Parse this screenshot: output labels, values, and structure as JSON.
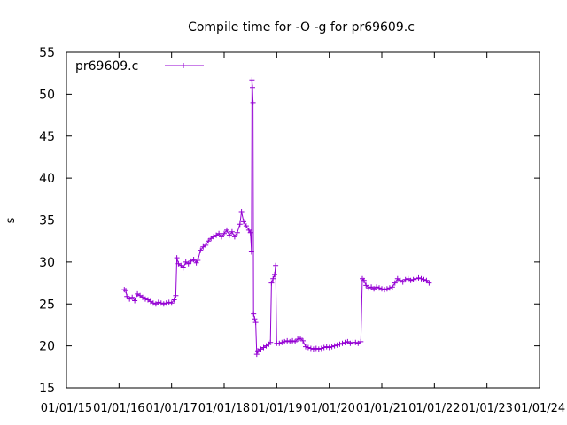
{
  "chart_data": {
    "type": "line",
    "title": "Compile time for -O -g for pr69609.c",
    "xlabel": "",
    "ylabel": "s",
    "ylim": [
      15,
      55
    ],
    "yticks": [
      15,
      20,
      25,
      30,
      35,
      40,
      45,
      50,
      55
    ],
    "xlim": [
      2015,
      2024
    ],
    "xticks": [
      {
        "value": 2015,
        "label": "01/01/15"
      },
      {
        "value": 2016,
        "label": "01/01/16"
      },
      {
        "value": 2017,
        "label": "01/01/17"
      },
      {
        "value": 2018,
        "label": "01/01/18"
      },
      {
        "value": 2019,
        "label": "01/01/19"
      },
      {
        "value": 2020,
        "label": "01/01/20"
      },
      {
        "value": 2021,
        "label": "01/01/21"
      },
      {
        "value": 2022,
        "label": "01/01/22"
      },
      {
        "value": 2023,
        "label": "01/01/23"
      },
      {
        "value": 2024,
        "label": "01/01/24"
      }
    ],
    "legend": "top-left",
    "grid": false,
    "series": [
      {
        "name": "pr69609.c",
        "color": "#9400d3",
        "marker": "plus",
        "points": [
          [
            2016.1,
            26.7
          ],
          [
            2016.13,
            26.6
          ],
          [
            2016.15,
            25.9
          ],
          [
            2016.2,
            25.6
          ],
          [
            2016.25,
            25.8
          ],
          [
            2016.3,
            25.4
          ],
          [
            2016.35,
            26.2
          ],
          [
            2016.4,
            26.0
          ],
          [
            2016.45,
            25.8
          ],
          [
            2016.5,
            25.6
          ],
          [
            2016.55,
            25.5
          ],
          [
            2016.6,
            25.3
          ],
          [
            2016.65,
            25.1
          ],
          [
            2016.7,
            25.0
          ],
          [
            2016.75,
            25.2
          ],
          [
            2016.8,
            25.1
          ],
          [
            2016.85,
            25.0
          ],
          [
            2016.9,
            25.1
          ],
          [
            2016.95,
            25.2
          ],
          [
            2017.0,
            25.1
          ],
          [
            2017.05,
            25.5
          ],
          [
            2017.08,
            26.0
          ],
          [
            2017.1,
            30.5
          ],
          [
            2017.13,
            29.8
          ],
          [
            2017.18,
            29.6
          ],
          [
            2017.22,
            29.3
          ],
          [
            2017.27,
            30.0
          ],
          [
            2017.32,
            29.8
          ],
          [
            2017.37,
            30.1
          ],
          [
            2017.42,
            30.3
          ],
          [
            2017.47,
            29.9
          ],
          [
            2017.5,
            30.2
          ],
          [
            2017.55,
            31.4
          ],
          [
            2017.6,
            31.8
          ],
          [
            2017.65,
            32.0
          ],
          [
            2017.7,
            32.5
          ],
          [
            2017.75,
            32.8
          ],
          [
            2017.8,
            33.0
          ],
          [
            2017.85,
            33.2
          ],
          [
            2017.9,
            33.4
          ],
          [
            2017.95,
            33.0
          ],
          [
            2018.0,
            33.4
          ],
          [
            2018.05,
            33.8
          ],
          [
            2018.1,
            33.2
          ],
          [
            2018.15,
            33.6
          ],
          [
            2018.2,
            33.0
          ],
          [
            2018.25,
            33.5
          ],
          [
            2018.3,
            34.5
          ],
          [
            2018.33,
            36.0
          ],
          [
            2018.37,
            34.8
          ],
          [
            2018.42,
            34.3
          ],
          [
            2018.47,
            33.8
          ],
          [
            2018.5,
            33.5
          ],
          [
            2018.52,
            31.2
          ],
          [
            2018.53,
            51.7
          ],
          [
            2018.54,
            50.8
          ],
          [
            2018.55,
            49.0
          ],
          [
            2018.56,
            23.8
          ],
          [
            2018.58,
            23.2
          ],
          [
            2018.6,
            22.8
          ],
          [
            2018.62,
            19.0
          ],
          [
            2018.64,
            19.4
          ],
          [
            2018.7,
            19.6
          ],
          [
            2018.75,
            19.8
          ],
          [
            2018.8,
            20.0
          ],
          [
            2018.85,
            20.2
          ],
          [
            2018.88,
            20.4
          ],
          [
            2018.9,
            27.5
          ],
          [
            2018.93,
            28.0
          ],
          [
            2018.96,
            28.5
          ],
          [
            2018.98,
            29.6
          ],
          [
            2019.0,
            20.3
          ],
          [
            2019.05,
            20.3
          ],
          [
            2019.1,
            20.4
          ],
          [
            2019.15,
            20.5
          ],
          [
            2019.2,
            20.6
          ],
          [
            2019.25,
            20.5
          ],
          [
            2019.3,
            20.6
          ],
          [
            2019.35,
            20.5
          ],
          [
            2019.4,
            20.8
          ],
          [
            2019.45,
            20.9
          ],
          [
            2019.5,
            20.6
          ],
          [
            2019.55,
            19.9
          ],
          [
            2019.6,
            19.8
          ],
          [
            2019.65,
            19.7
          ],
          [
            2019.7,
            19.6
          ],
          [
            2019.75,
            19.7
          ],
          [
            2019.8,
            19.6
          ],
          [
            2019.85,
            19.7
          ],
          [
            2019.9,
            19.8
          ],
          [
            2019.95,
            19.9
          ],
          [
            2020.0,
            19.8
          ],
          [
            2020.05,
            19.9
          ],
          [
            2020.1,
            20.0
          ],
          [
            2020.15,
            20.1
          ],
          [
            2020.2,
            20.2
          ],
          [
            2020.25,
            20.3
          ],
          [
            2020.3,
            20.4
          ],
          [
            2020.35,
            20.5
          ],
          [
            2020.4,
            20.3
          ],
          [
            2020.45,
            20.4
          ],
          [
            2020.5,
            20.4
          ],
          [
            2020.55,
            20.3
          ],
          [
            2020.6,
            20.5
          ],
          [
            2020.63,
            28.0
          ],
          [
            2020.66,
            27.8
          ],
          [
            2020.7,
            27.2
          ],
          [
            2020.75,
            26.9
          ],
          [
            2020.8,
            27.0
          ],
          [
            2020.85,
            26.8
          ],
          [
            2020.9,
            27.0
          ],
          [
            2020.95,
            26.9
          ],
          [
            2021.0,
            26.8
          ],
          [
            2021.05,
            26.7
          ],
          [
            2021.1,
            26.8
          ],
          [
            2021.15,
            26.9
          ],
          [
            2021.2,
            27.0
          ],
          [
            2021.25,
            27.5
          ],
          [
            2021.3,
            28.0
          ],
          [
            2021.35,
            27.8
          ],
          [
            2021.4,
            27.6
          ],
          [
            2021.45,
            27.9
          ],
          [
            2021.5,
            28.0
          ],
          [
            2021.55,
            27.8
          ],
          [
            2021.6,
            27.9
          ],
          [
            2021.65,
            28.0
          ],
          [
            2021.7,
            28.1
          ],
          [
            2021.75,
            28.0
          ],
          [
            2021.8,
            27.9
          ],
          [
            2021.85,
            27.8
          ],
          [
            2021.9,
            27.5
          ]
        ]
      }
    ]
  }
}
